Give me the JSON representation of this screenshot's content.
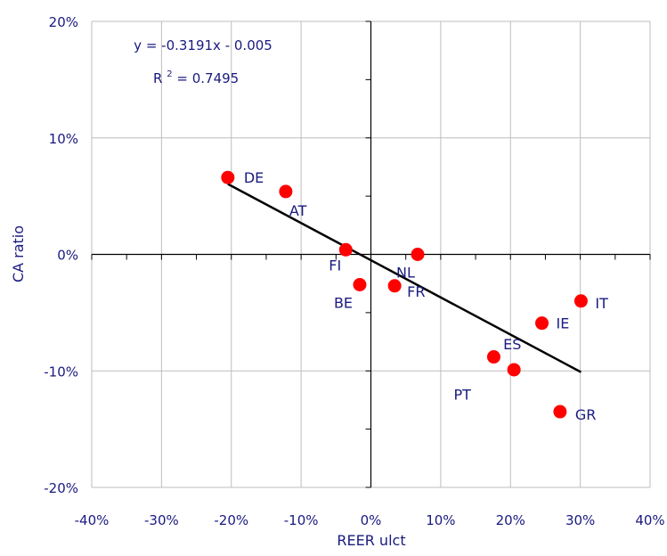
{
  "chart_data": {
    "type": "scatter",
    "xlabel": "REER ulct",
    "ylabel": "CA ratio",
    "xlim": [
      -0.4,
      0.4
    ],
    "ylim": [
      -0.2,
      0.2
    ],
    "x_ticks": [
      -0.4,
      -0.3,
      -0.2,
      -0.1,
      0,
      0.1,
      0.2,
      0.3,
      0.4
    ],
    "y_ticks": [
      -0.2,
      -0.1,
      0,
      0.1,
      0.2
    ],
    "x_tick_labels": [
      "-40%",
      "-30%",
      "-20%",
      "-10%",
      "0%",
      "10%",
      "20%",
      "30%",
      "40%"
    ],
    "y_tick_labels": [
      "-20%",
      "-10%",
      "0%",
      "10%",
      "20%"
    ],
    "grid": true,
    "point_color": "#ff0000",
    "text_color": "#1a1a80",
    "points": [
      {
        "label": "DE",
        "x": -0.205,
        "y": 0.066
      },
      {
        "label": "AT",
        "x": -0.122,
        "y": 0.054
      },
      {
        "label": "FI",
        "x": -0.036,
        "y": 0.004
      },
      {
        "label": "BE",
        "x": -0.016,
        "y": -0.026
      },
      {
        "label": "FR",
        "x": 0.034,
        "y": -0.027
      },
      {
        "label": "NL",
        "x": 0.067,
        "y": 0.0
      },
      {
        "label": "PT",
        "x": 0.176,
        "y": -0.088
      },
      {
        "label": "ES",
        "x": 0.205,
        "y": -0.099
      },
      {
        "label": "IE",
        "x": 0.245,
        "y": -0.059
      },
      {
        "label": "GR",
        "x": 0.271,
        "y": -0.135
      },
      {
        "label": "IT",
        "x": 0.301,
        "y": -0.04
      }
    ],
    "trendline": {
      "slope": -0.3191,
      "intercept": -0.005,
      "x_range": [
        -0.205,
        0.301
      ],
      "color": "#000000"
    },
    "equation_text": "y = -0.3191x - 0.005",
    "r2_prefix": "R",
    "r2_exponent": "2",
    "r2_suffix": " = 0.7495"
  }
}
